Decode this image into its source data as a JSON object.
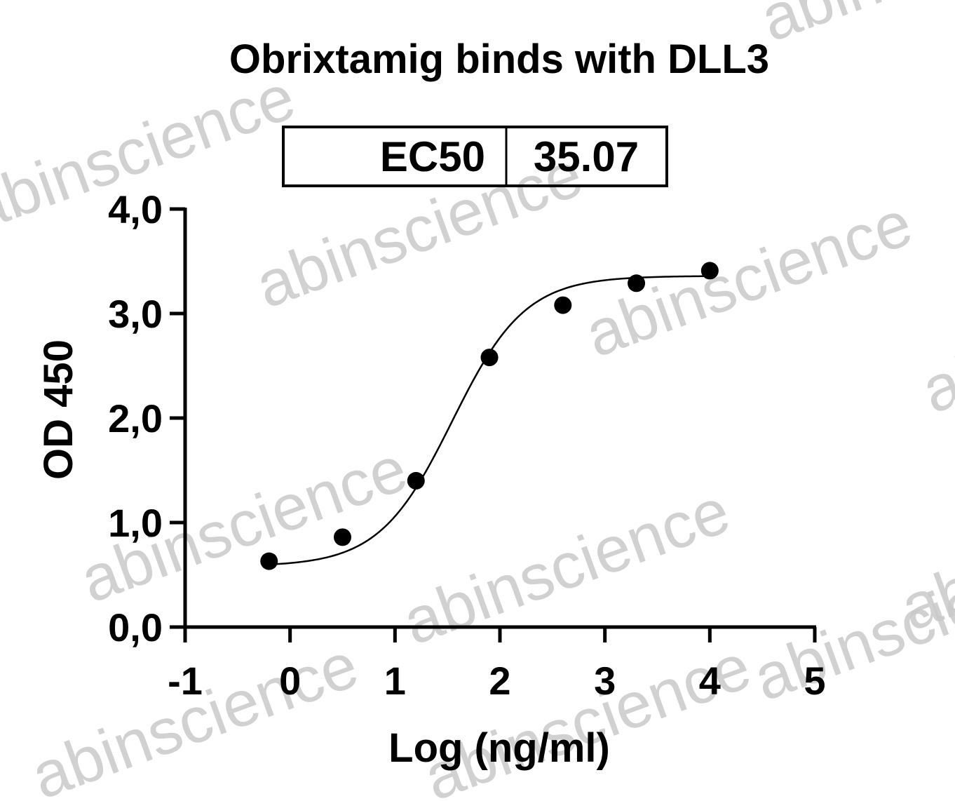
{
  "watermark": "abinscience",
  "ec50_table": {
    "label": "EC50",
    "value": "35.07"
  },
  "chart_data": {
    "type": "scatter",
    "title": "Obrixtamig binds with DLL3",
    "xlabel": "Log (ng/ml)",
    "ylabel": "OD 450",
    "xlim": [
      -1,
      5
    ],
    "ylim": [
      0,
      4
    ],
    "x_ticks": [
      -1,
      0,
      1,
      2,
      3,
      4,
      5
    ],
    "x_tick_labels": [
      "-1",
      "0",
      "1",
      "2",
      "3",
      "4",
      "5"
    ],
    "y_ticks": [
      0,
      1,
      2,
      3,
      4
    ],
    "y_tick_labels": [
      "0,0",
      "1,0",
      "2,0",
      "3,0",
      "4,0"
    ],
    "grid": false,
    "series": [
      {
        "points": [
          {
            "x": -0.2,
            "y": 0.63
          },
          {
            "x": 0.5,
            "y": 0.86
          },
          {
            "x": 1.2,
            "y": 1.4
          },
          {
            "x": 1.9,
            "y": 2.58
          },
          {
            "x": 2.6,
            "y": 3.08
          },
          {
            "x": 3.3,
            "y": 3.29
          },
          {
            "x": 4.0,
            "y": 3.41
          }
        ],
        "fit": {
          "model": "4PL",
          "bottom": 0.58,
          "top": 3.36,
          "log_ec50": 1.545,
          "hill": 1.25
        }
      }
    ]
  }
}
